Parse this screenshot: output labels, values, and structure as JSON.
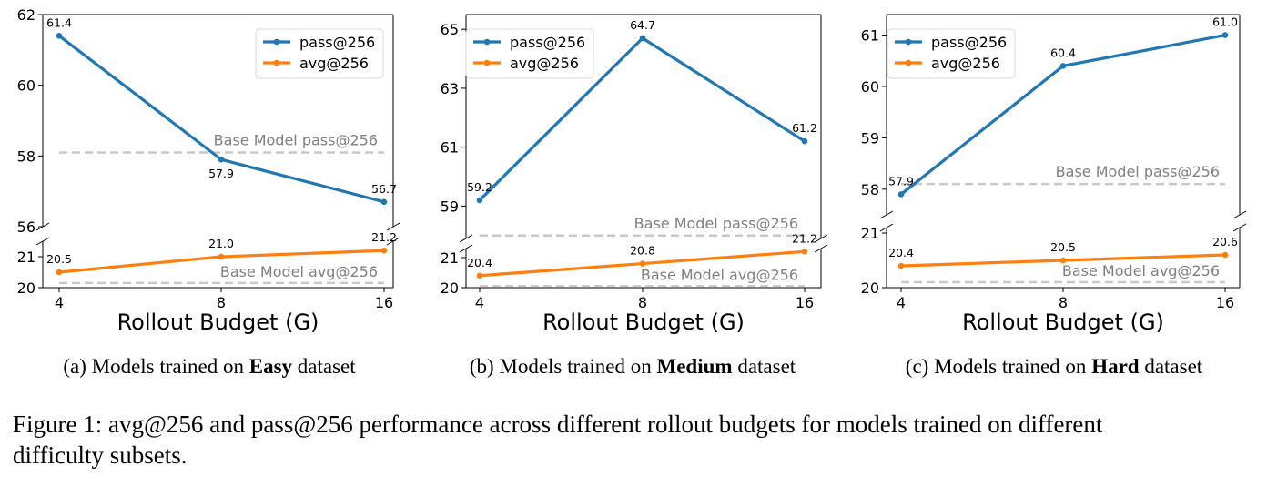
{
  "figure_caption": {
    "line1": "Figure 1: avg@256 and pass@256 performance across different rollout budgets for models trained on different",
    "line2": "difficulty subsets."
  },
  "chart_data": [
    {
      "type": "line",
      "subcaption": {
        "pre": "(a) Models trained on ",
        "bold": "Easy",
        "post": " dataset"
      },
      "xlabel": "Rollout Budget (G)",
      "categories": [
        "4",
        "8",
        "16"
      ],
      "series": [
        {
          "name": "pass@256",
          "color": "#1f77b4",
          "values": [
            61.4,
            57.9,
            56.7
          ],
          "labels": [
            "61.4",
            "57.9",
            "56.7"
          ]
        },
        {
          "name": "avg@256",
          "color": "#ff7f0e",
          "values": [
            20.5,
            21.0,
            21.2
          ],
          "labels": [
            "20.5",
            "21.0",
            "21.2"
          ]
        }
      ],
      "reference_lines": [
        {
          "label": "Base Model pass@256",
          "value": 58.1
        },
        {
          "label": "Base Model avg@256",
          "value": 20.15
        }
      ],
      "top_axis": {
        "ylim": [
          56,
          62
        ],
        "ticks": [
          "56",
          "58",
          "60",
          "62"
        ]
      },
      "bottom_axis": {
        "ylim": [
          20,
          21.5
        ],
        "ticks": [
          "20",
          "21"
        ]
      },
      "legend_position": "top-right",
      "broken_y_axis": true
    },
    {
      "type": "line",
      "subcaption": {
        "pre": "(b) Models trained on ",
        "bold": "Medium",
        "post": " dataset"
      },
      "xlabel": "Rollout Budget (G)",
      "categories": [
        "4",
        "8",
        "16"
      ],
      "series": [
        {
          "name": "pass@256",
          "color": "#1f77b4",
          "values": [
            59.2,
            64.7,
            61.2
          ],
          "labels": [
            "59.2",
            "64.7",
            "61.2"
          ]
        },
        {
          "name": "avg@256",
          "color": "#ff7f0e",
          "values": [
            20.4,
            20.8,
            21.2
          ],
          "labels": [
            "20.4",
            "20.8",
            "21.2"
          ]
        }
      ],
      "reference_lines": [
        {
          "label": "Base Model pass@256",
          "value": 58.0
        },
        {
          "label": "Base Model avg@256",
          "value": 20.05
        }
      ],
      "top_axis": {
        "ylim": [
          57.9,
          65.5
        ],
        "ticks": [
          "59",
          "61",
          "63",
          "65"
        ]
      },
      "bottom_axis": {
        "ylim": [
          20,
          21.3
        ],
        "ticks": [
          "20",
          "21"
        ]
      },
      "legend_position": "top-left",
      "broken_y_axis": true
    },
    {
      "type": "line",
      "subcaption": {
        "pre": "(c) Models trained on ",
        "bold": "Hard",
        "post": " dataset"
      },
      "xlabel": "Rollout Budget (G)",
      "categories": [
        "4",
        "8",
        "16"
      ],
      "series": [
        {
          "name": "pass@256",
          "color": "#1f77b4",
          "values": [
            57.9,
            60.4,
            61.0
          ],
          "labels": [
            "57.9",
            "60.4",
            "61.0"
          ]
        },
        {
          "name": "avg@256",
          "color": "#ff7f0e",
          "values": [
            20.4,
            20.5,
            20.6
          ],
          "labels": [
            "20.4",
            "20.5",
            "20.6"
          ]
        }
      ],
      "reference_lines": [
        {
          "label": "Base Model pass@256",
          "value": 58.1
        },
        {
          "label": "Base Model avg@256",
          "value": 20.1
        }
      ],
      "top_axis": {
        "ylim": [
          57.5,
          61.4
        ],
        "ticks": [
          "58",
          "59",
          "60",
          "61"
        ]
      },
      "bottom_axis": {
        "ylim": [
          20,
          21.1
        ],
        "ticks": [
          "20",
          "21"
        ]
      },
      "legend_position": "top-left",
      "broken_y_axis": true
    }
  ]
}
